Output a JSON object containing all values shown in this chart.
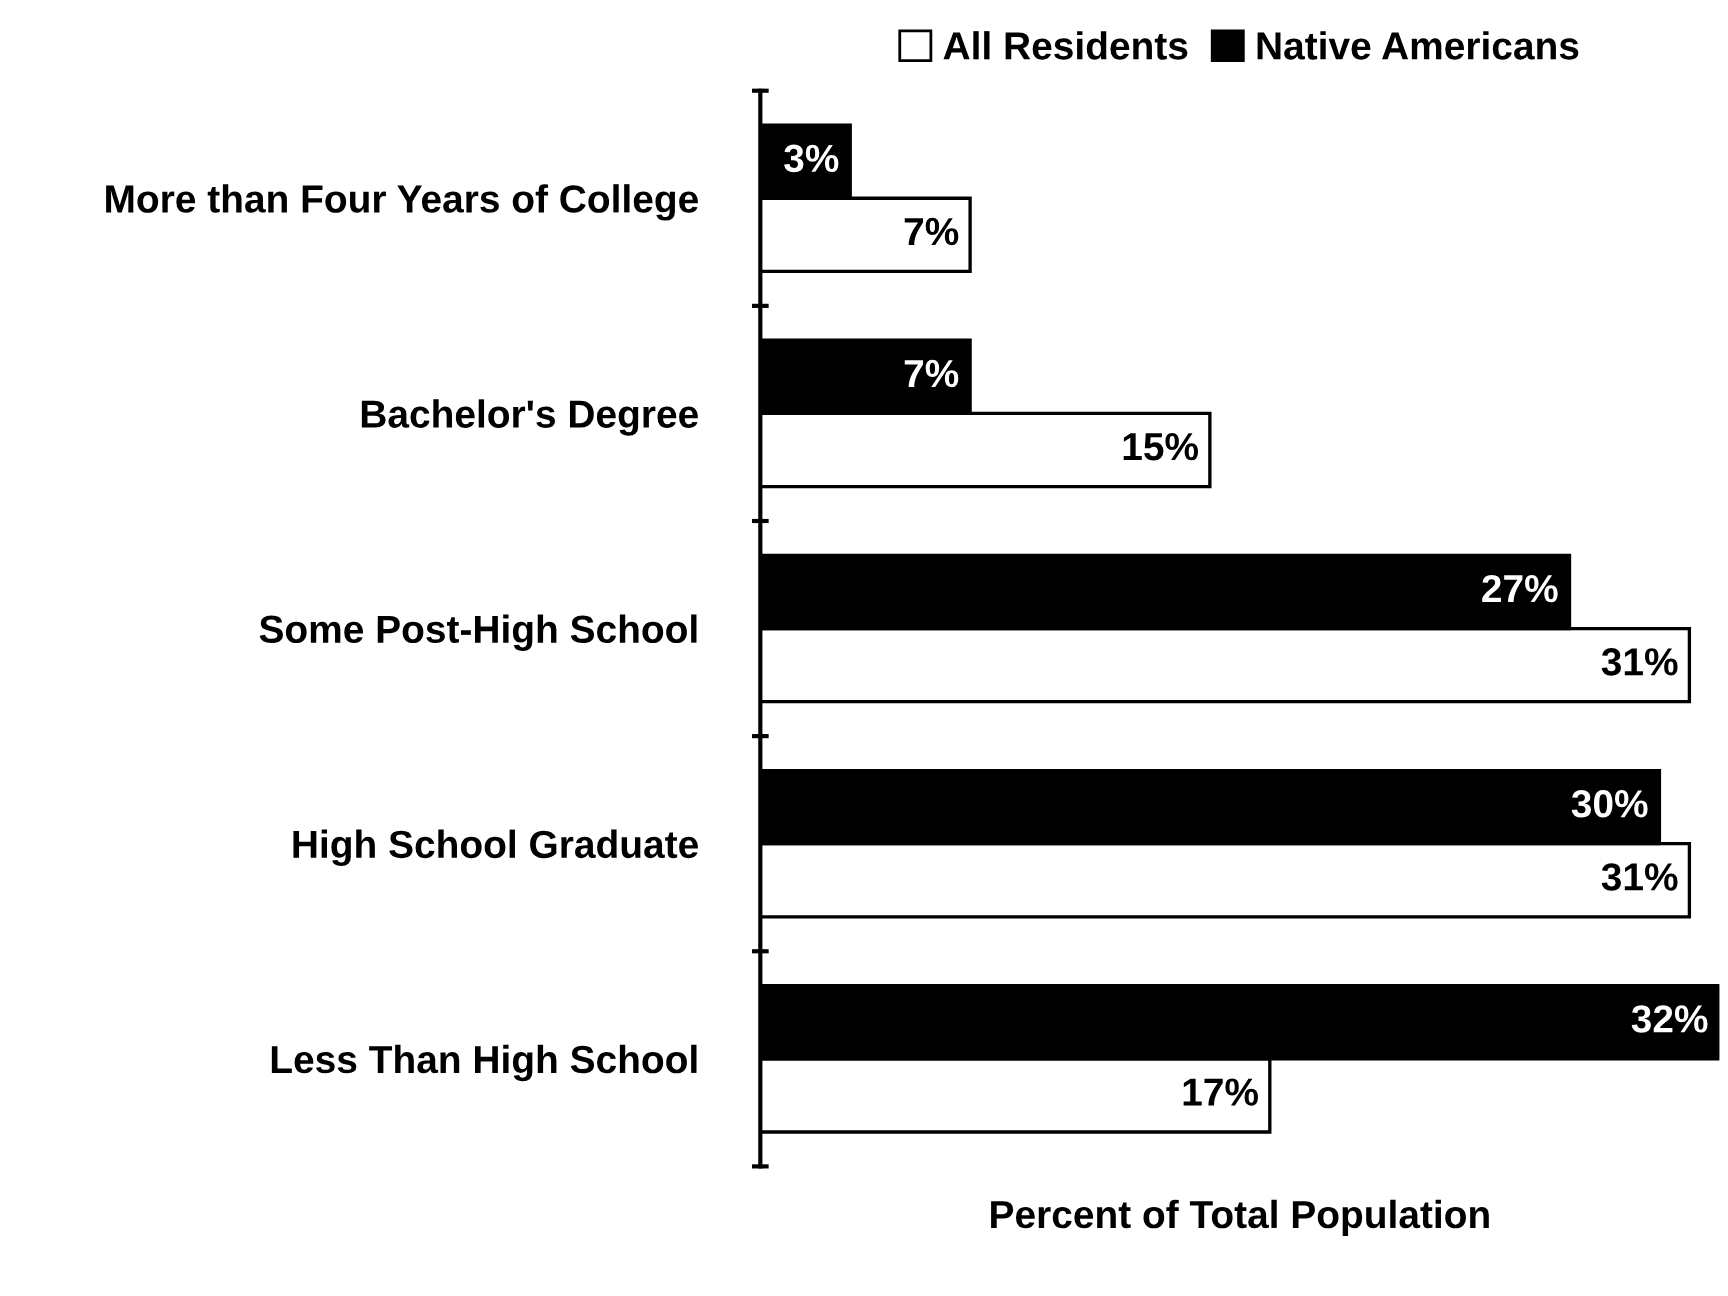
{
  "chart_data": {
    "type": "bar",
    "orientation": "horizontal",
    "xlabel": "Percent of Total Population",
    "categories": [
      "More than Four Years of College",
      "Bachelor's Degree",
      "Some Post-High School",
      "High School Graduate",
      "Less Than High School"
    ],
    "series": [
      {
        "name": "All Residents",
        "color": "#ffffff",
        "values": [
          7,
          15,
          31,
          31,
          17
        ],
        "value_labels": [
          "7%",
          "15%",
          "31%",
          "31%",
          "17%"
        ]
      },
      {
        "name": "Native Americans",
        "color": "#000000",
        "values": [
          3,
          7,
          27,
          30,
          32
        ],
        "value_labels": [
          "3%",
          "7%",
          "27%",
          "30%",
          "32%"
        ]
      }
    ],
    "xlim": [
      0,
      32
    ],
    "legend": "top",
    "grid": false
  }
}
